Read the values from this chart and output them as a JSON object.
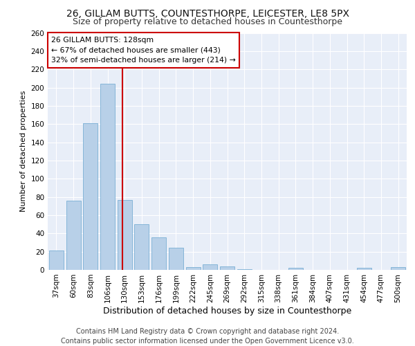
{
  "title1": "26, GILLAM BUTTS, COUNTESTHORPE, LEICESTER, LE8 5PX",
  "title2": "Size of property relative to detached houses in Countesthorpe",
  "xlabel": "Distribution of detached houses by size in Countesthorpe",
  "ylabel": "Number of detached properties",
  "footnote1": "Contains HM Land Registry data © Crown copyright and database right 2024.",
  "footnote2": "Contains public sector information licensed under the Open Government Licence v3.0.",
  "categories": [
    "37sqm",
    "60sqm",
    "83sqm",
    "106sqm",
    "130sqm",
    "153sqm",
    "176sqm",
    "199sqm",
    "222sqm",
    "245sqm",
    "269sqm",
    "292sqm",
    "315sqm",
    "338sqm",
    "361sqm",
    "384sqm",
    "407sqm",
    "431sqm",
    "454sqm",
    "477sqm",
    "500sqm"
  ],
  "values": [
    21,
    76,
    161,
    204,
    77,
    50,
    36,
    24,
    3,
    6,
    4,
    1,
    0,
    0,
    2,
    0,
    0,
    0,
    2,
    0,
    3
  ],
  "bar_color": "#b8d0e8",
  "bar_edge_color": "#7aafd4",
  "annotation_title": "26 GILLAM BUTTS: 128sqm",
  "annotation_line1": "← 67% of detached houses are smaller (443)",
  "annotation_line2": "32% of semi-detached houses are larger (214) →",
  "annotation_box_color": "#ffffff",
  "annotation_box_edge": "#cc0000",
  "vline_color": "#cc0000",
  "ylim": [
    0,
    260
  ],
  "yticks": [
    0,
    20,
    40,
    60,
    80,
    100,
    120,
    140,
    160,
    180,
    200,
    220,
    240,
    260
  ],
  "background_color": "#e8eef8",
  "grid_color": "#ffffff",
  "title1_fontsize": 10,
  "title2_fontsize": 9,
  "xlabel_fontsize": 9,
  "ylabel_fontsize": 8,
  "tick_fontsize": 7.5,
  "footnote_fontsize": 7
}
